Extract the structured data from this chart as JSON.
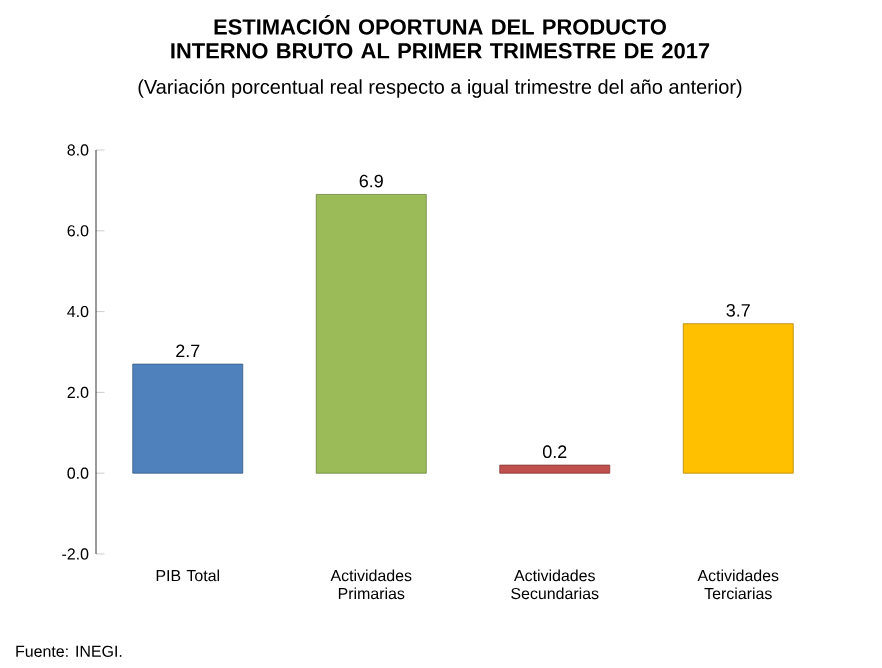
{
  "chart_data": {
    "type": "bar",
    "title": "ESTIMACIÓN OPORTUNA DEL PRODUCTO INTERNO BRUTO AL PRIMER TRIMESTRE DE 2017",
    "subtitle": "(Variación porcentual real respecto a igual trimestre del año anterior)",
    "categories": [
      "PIB Total",
      "Actividades Primarias",
      "Actividades Secundarias",
      "Actividades Terciarias"
    ],
    "values": [
      2.7,
      6.9,
      0.2,
      3.7
    ],
    "colors": [
      "#4f81bd",
      "#9bbb59",
      "#c0504d",
      "#ffc000"
    ],
    "data_labels": true,
    "ylim": [
      -2,
      8
    ],
    "yticks": [
      {
        "value": -2,
        "label": "-2.0"
      },
      {
        "value": 0,
        "label": "0.0"
      },
      {
        "value": 2,
        "label": "2.0"
      },
      {
        "value": 4,
        "label": "4.0"
      },
      {
        "value": 6,
        "label": "6.0"
      },
      {
        "value": 8,
        "label": "8.0"
      }
    ],
    "grid": false,
    "annotations": [
      "Fuente: INEGI."
    ]
  }
}
